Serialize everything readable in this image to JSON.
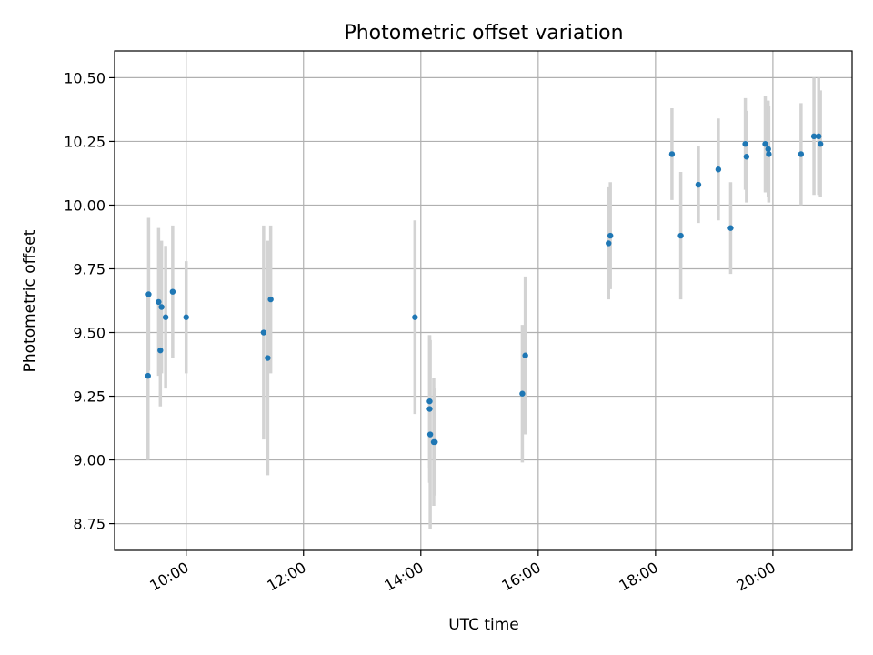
{
  "chart_data": {
    "type": "scatter",
    "title": "Photometric offset variation",
    "xlabel": "UTC time",
    "ylabel": "Photometric offset",
    "grid": true,
    "x_unit": "hours UTC",
    "xlim": [
      8.78,
      21.35
    ],
    "ylim": [
      8.645,
      10.605
    ],
    "x_ticks": [
      {
        "value": 10,
        "label": "10:00"
      },
      {
        "value": 12,
        "label": "12:00"
      },
      {
        "value": 14,
        "label": "14:00"
      },
      {
        "value": 16,
        "label": "16:00"
      },
      {
        "value": 18,
        "label": "18:00"
      },
      {
        "value": 20,
        "label": "20:00"
      }
    ],
    "y_ticks": [
      {
        "value": 8.75,
        "label": "8.75"
      },
      {
        "value": 9.0,
        "label": "9.00"
      },
      {
        "value": 9.25,
        "label": "9.25"
      },
      {
        "value": 9.5,
        "label": "9.50"
      },
      {
        "value": 9.75,
        "label": "9.75"
      },
      {
        "value": 10.0,
        "label": "10.00"
      },
      {
        "value": 10.25,
        "label": "10.25"
      },
      {
        "value": 10.5,
        "label": "10.50"
      }
    ],
    "point_color": "#1f77b4",
    "errorbar_color": "#d3d3d3",
    "series": [
      {
        "name": "Photometric offset",
        "points": [
          {
            "x": 9.35,
            "y": 9.33,
            "err": 0.33
          },
          {
            "x": 9.36,
            "y": 9.65,
            "err": 0.3
          },
          {
            "x": 9.53,
            "y": 9.62,
            "err": 0.29
          },
          {
            "x": 9.56,
            "y": 9.43,
            "err": 0.22
          },
          {
            "x": 9.58,
            "y": 9.6,
            "err": 0.26
          },
          {
            "x": 9.65,
            "y": 9.56,
            "err": 0.28
          },
          {
            "x": 9.77,
            "y": 9.66,
            "err": 0.26
          },
          {
            "x": 10.0,
            "y": 9.56,
            "err": 0.22
          },
          {
            "x": 11.32,
            "y": 9.5,
            "err": 0.42
          },
          {
            "x": 11.39,
            "y": 9.4,
            "err": 0.46
          },
          {
            "x": 11.44,
            "y": 9.63,
            "err": 0.29
          },
          {
            "x": 13.9,
            "y": 9.56,
            "err": 0.38
          },
          {
            "x": 14.15,
            "y": 9.23,
            "err": 0.26
          },
          {
            "x": 14.15,
            "y": 9.2,
            "err": 0.29
          },
          {
            "x": 14.16,
            "y": 9.1,
            "err": 0.37
          },
          {
            "x": 14.22,
            "y": 9.07,
            "err": 0.25
          },
          {
            "x": 14.24,
            "y": 9.07,
            "err": 0.21
          },
          {
            "x": 15.73,
            "y": 9.26,
            "err": 0.27
          },
          {
            "x": 15.78,
            "y": 9.41,
            "err": 0.31
          },
          {
            "x": 17.2,
            "y": 9.85,
            "err": 0.22
          },
          {
            "x": 17.23,
            "y": 9.88,
            "err": 0.21
          },
          {
            "x": 18.28,
            "y": 10.2,
            "err": 0.18
          },
          {
            "x": 18.43,
            "y": 9.88,
            "err": 0.25
          },
          {
            "x": 18.73,
            "y": 10.08,
            "err": 0.15
          },
          {
            "x": 19.07,
            "y": 10.14,
            "err": 0.2
          },
          {
            "x": 19.28,
            "y": 9.91,
            "err": 0.18
          },
          {
            "x": 19.53,
            "y": 10.24,
            "err": 0.18
          },
          {
            "x": 19.55,
            "y": 10.19,
            "err": 0.18
          },
          {
            "x": 19.87,
            "y": 10.24,
            "err": 0.19
          },
          {
            "x": 19.92,
            "y": 10.22,
            "err": 0.19
          },
          {
            "x": 19.93,
            "y": 10.2,
            "err": 0.19
          },
          {
            "x": 20.48,
            "y": 10.2,
            "err": 0.2
          },
          {
            "x": 20.7,
            "y": 10.27,
            "err": 0.23
          },
          {
            "x": 20.78,
            "y": 10.27,
            "err": 0.23
          },
          {
            "x": 20.81,
            "y": 10.24,
            "err": 0.21
          }
        ]
      }
    ]
  }
}
